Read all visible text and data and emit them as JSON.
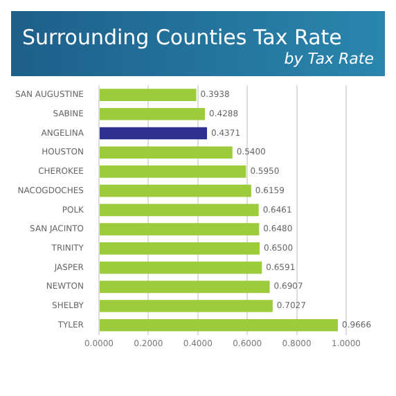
{
  "chart_data": {
    "type": "bar",
    "orientation": "horizontal",
    "title": "Surrounding Counties Tax Rate",
    "subtitle": "by Tax Rate",
    "categories": [
      "SAN AUGUSTINE",
      "SABINE",
      "ANGELINA",
      "HOUSTON",
      "CHEROKEE",
      "NACOGDOCHES",
      "POLK",
      "SAN JACINTO",
      "TRINITY",
      "JASPER",
      "NEWTON",
      "SHELBY",
      "TYLER"
    ],
    "values": [
      0.3938,
      0.4288,
      0.4371,
      0.54,
      0.595,
      0.6159,
      0.6461,
      0.648,
      0.65,
      0.6591,
      0.6907,
      0.7027,
      0.9666
    ],
    "value_labels": [
      "0.3938",
      "0.4288",
      "0.4371",
      "0.5400",
      "0.5950",
      "0.6159",
      "0.6461",
      "0.6480",
      "0.6500",
      "0.6591",
      "0.6907",
      "0.7027",
      "0.9666"
    ],
    "colors": [
      "#9ccc3c",
      "#9ccc3c",
      "#2e2f8f",
      "#9ccc3c",
      "#9ccc3c",
      "#9ccc3c",
      "#9ccc3c",
      "#9ccc3c",
      "#9ccc3c",
      "#9ccc3c",
      "#9ccc3c",
      "#9ccc3c",
      "#9ccc3c"
    ],
    "xlim": [
      0,
      1
    ],
    "xticks": [
      {
        "value": 0,
        "label": "0.0000"
      },
      {
        "value": 0.2,
        "label": "0.2000"
      },
      {
        "value": 0.4,
        "label": "0.4000"
      },
      {
        "value": 0.6,
        "label": "0.6000"
      },
      {
        "value": 0.8,
        "label": "0.8000"
      },
      {
        "value": 1,
        "label": "1.0000"
      }
    ],
    "grid": "x",
    "legend": false
  }
}
